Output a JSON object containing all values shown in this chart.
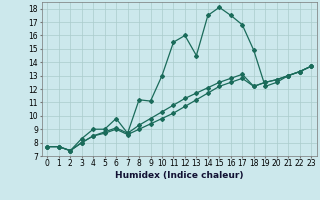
{
  "xlabel": "Humidex (Indice chaleur)",
  "bg_color": "#cce8ec",
  "line_color": "#1a6b5a",
  "marker": "D",
  "markersize": 2,
  "linewidth": 0.9,
  "x": [
    0,
    1,
    2,
    3,
    4,
    5,
    6,
    7,
    8,
    9,
    10,
    11,
    12,
    13,
    14,
    15,
    16,
    17,
    18,
    19,
    20,
    21,
    22,
    23
  ],
  "y_main": [
    7.7,
    7.7,
    7.4,
    8.3,
    9.0,
    9.0,
    9.8,
    8.7,
    11.2,
    11.1,
    13.0,
    15.5,
    16.0,
    14.5,
    17.5,
    18.1,
    17.5,
    16.8,
    14.9,
    12.2,
    12.5,
    13.0,
    13.3,
    13.7
  ],
  "y_line2": [
    7.7,
    7.7,
    7.4,
    8.0,
    8.5,
    8.8,
    9.1,
    8.7,
    9.3,
    9.8,
    10.3,
    10.8,
    11.3,
    11.7,
    12.1,
    12.5,
    12.8,
    13.1,
    12.2,
    12.5,
    12.7,
    13.0,
    13.3,
    13.7
  ],
  "y_line3": [
    7.7,
    7.7,
    7.4,
    8.0,
    8.5,
    8.7,
    9.0,
    8.6,
    9.0,
    9.4,
    9.8,
    10.2,
    10.7,
    11.2,
    11.7,
    12.2,
    12.5,
    12.8,
    12.2,
    12.5,
    12.7,
    13.0,
    13.3,
    13.7
  ],
  "xlim": [
    -0.5,
    23.5
  ],
  "ylim": [
    7,
    18.5
  ],
  "yticks": [
    7,
    8,
    9,
    10,
    11,
    12,
    13,
    14,
    15,
    16,
    17,
    18
  ],
  "xticks": [
    0,
    1,
    2,
    3,
    4,
    5,
    6,
    7,
    8,
    9,
    10,
    11,
    12,
    13,
    14,
    15,
    16,
    17,
    18,
    19,
    20,
    21,
    22,
    23
  ],
  "grid_color": "#aacccc",
  "tick_fontsize": 5.5,
  "xlabel_fontsize": 6.5
}
